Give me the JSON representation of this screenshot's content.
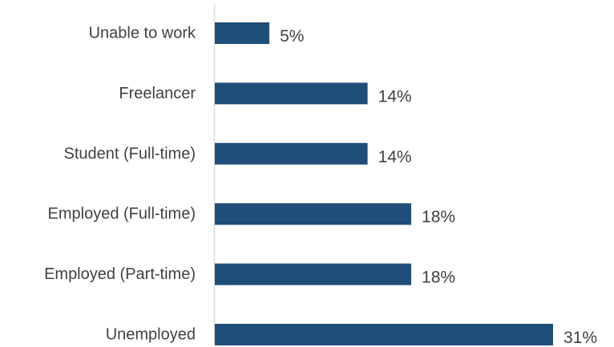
{
  "chart_data": {
    "type": "bar",
    "orientation": "horizontal",
    "categories": [
      "Unable to work",
      "Freelancer",
      "Student (Full-time)",
      "Employed (Full-time)",
      "Employed (Part-time)",
      "Unemployed"
    ],
    "values": [
      5,
      14,
      14,
      18,
      18,
      31
    ],
    "value_labels": [
      "5%",
      "14%",
      "14%",
      "18%",
      "18%",
      "31%"
    ],
    "unit": "%",
    "xlim": [
      0,
      31
    ],
    "grid": false,
    "legend": "none",
    "colors": {
      "bar": "#1F4E79",
      "axis": "#D9D9D9",
      "text": "#404040"
    }
  }
}
